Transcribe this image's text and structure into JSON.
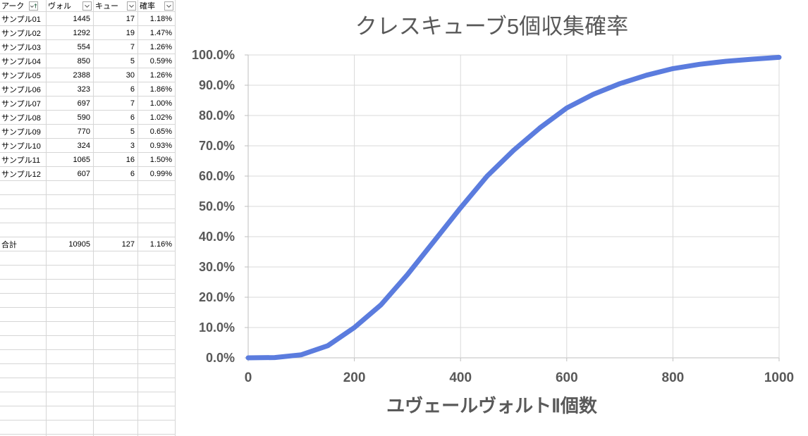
{
  "table": {
    "headers": [
      {
        "label": "アーク",
        "sorted": "ascending"
      },
      {
        "label": "ヴォル",
        "sorted": "none"
      },
      {
        "label": "キュー",
        "sorted": "none"
      },
      {
        "label": "確率",
        "sorted": "none"
      }
    ],
    "header_icons": {
      "filter_dropdown": "chevron-down",
      "sort_ascending": "arrow-up"
    },
    "rows": [
      {
        "name": "サンプル01",
        "volt": "1445",
        "cube": "17",
        "rate": "1.18%"
      },
      {
        "name": "サンプル02",
        "volt": "1292",
        "cube": "19",
        "rate": "1.47%"
      },
      {
        "name": "サンプル03",
        "volt": "554",
        "cube": "7",
        "rate": "1.26%"
      },
      {
        "name": "サンプル04",
        "volt": "850",
        "cube": "5",
        "rate": "0.59%"
      },
      {
        "name": "サンプル05",
        "volt": "2388",
        "cube": "30",
        "rate": "1.26%"
      },
      {
        "name": "サンプル06",
        "volt": "323",
        "cube": "6",
        "rate": "1.86%"
      },
      {
        "name": "サンプル07",
        "volt": "697",
        "cube": "7",
        "rate": "1.00%"
      },
      {
        "name": "サンプル08",
        "volt": "590",
        "cube": "6",
        "rate": "1.02%"
      },
      {
        "name": "サンプル09",
        "volt": "770",
        "cube": "5",
        "rate": "0.65%"
      },
      {
        "name": "サンプル10",
        "volt": "324",
        "cube": "3",
        "rate": "0.93%"
      },
      {
        "name": "サンプル11",
        "volt": "1065",
        "cube": "16",
        "rate": "1.50%"
      },
      {
        "name": "サンプル12",
        "volt": "607",
        "cube": "6",
        "rate": "0.99%"
      }
    ],
    "total": {
      "name": "合計",
      "volt": "10905",
      "cube": "127",
      "rate": "1.16%"
    }
  },
  "chart_data": {
    "type": "line",
    "title": "クレスキューブ5個収集確率",
    "xlabel": "ユヴェールヴォルトⅡ個数",
    "ylabel": "",
    "x": [
      0,
      50,
      100,
      150,
      200,
      250,
      300,
      350,
      400,
      450,
      500,
      550,
      600,
      650,
      700,
      750,
      800,
      850,
      900,
      950,
      1000
    ],
    "y_percent": [
      0.0,
      0.1,
      1.0,
      4.0,
      10.0,
      17.5,
      27.5,
      38.5,
      49.5,
      60.0,
      68.5,
      76.0,
      82.5,
      87.0,
      90.5,
      93.3,
      95.5,
      96.9,
      97.9,
      98.6,
      99.2
    ],
    "xlim": [
      0,
      1000
    ],
    "ylim_percent": [
      0,
      100
    ],
    "x_ticks": [
      "0",
      "200",
      "400",
      "600",
      "800",
      "1000"
    ],
    "y_ticks": [
      "0.0%",
      "10.0%",
      "20.0%",
      "30.0%",
      "40.0%",
      "50.0%",
      "60.0%",
      "70.0%",
      "80.0%",
      "90.0%",
      "100.0%"
    ],
    "grid": true,
    "legend": "none",
    "line_color": "#5b7cde"
  },
  "colors": {
    "grid_line": "#d9d9d9",
    "axis_line": "#bfbfbf",
    "tick_label": "#595959",
    "title_text": "#595959",
    "cell_grid": "#d6d6d6"
  }
}
